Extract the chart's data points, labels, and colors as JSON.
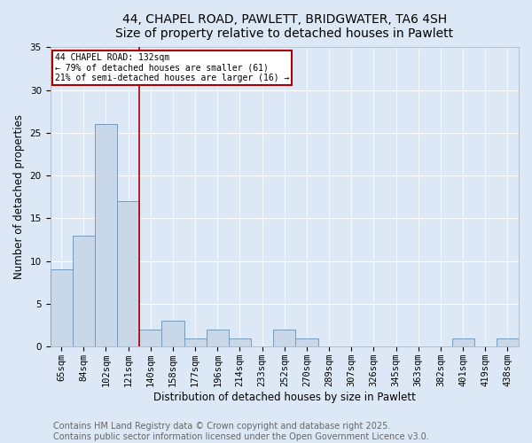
{
  "title_line1": "44, CHAPEL ROAD, PAWLETT, BRIDGWATER, TA6 4SH",
  "title_line2": "Size of property relative to detached houses in Pawlett",
  "categories": [
    "65sqm",
    "84sqm",
    "102sqm",
    "121sqm",
    "140sqm",
    "158sqm",
    "177sqm",
    "196sqm",
    "214sqm",
    "233sqm",
    "252sqm",
    "270sqm",
    "289sqm",
    "307sqm",
    "326sqm",
    "345sqm",
    "363sqm",
    "382sqm",
    "401sqm",
    "419sqm",
    "438sqm"
  ],
  "values": [
    9,
    13,
    26,
    17,
    2,
    3,
    1,
    2,
    1,
    0,
    2,
    1,
    0,
    0,
    0,
    0,
    0,
    0,
    1,
    0,
    1
  ],
  "bar_color": "#c8d8e8",
  "bar_edge_color": "#7799bb",
  "bar_edge_width": 0.7,
  "ylabel": "Number of detached properties",
  "xlabel": "Distribution of detached houses by size in Pawlett",
  "ylim": [
    0,
    35
  ],
  "yticks": [
    0,
    5,
    10,
    15,
    20,
    25,
    30,
    35
  ],
  "vline_x": 3.5,
  "vline_color": "#aa0000",
  "annotation_text": "44 CHAPEL ROAD: 132sqm\n← 79% of detached houses are smaller (61)\n21% of semi-detached houses are larger (16) →",
  "annotation_box_color": "#ffffff",
  "annotation_box_edgecolor": "#aa0000",
  "annotation_fontsize": 7,
  "footer_line1": "Contains HM Land Registry data © Crown copyright and database right 2025.",
  "footer_line2": "Contains public sector information licensed under the Open Government Licence v3.0.",
  "footer_fontsize": 7,
  "background_color": "#dce8f5",
  "axes_background_color": "#dce8f5",
  "grid_color": "#ffffff",
  "title_fontsize": 10,
  "xlabel_fontsize": 8.5,
  "ylabel_fontsize": 8.5,
  "tick_fontsize": 7.5
}
